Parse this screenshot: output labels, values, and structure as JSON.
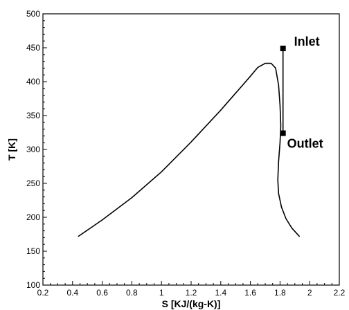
{
  "chart_data": {
    "type": "line",
    "title": "",
    "xlabel": "S [KJ/(kg-K)]",
    "ylabel": "T [K]",
    "xlim": [
      0.2,
      2.2
    ],
    "ylim": [
      100,
      500
    ],
    "xticks": [
      0.2,
      0.4,
      0.6,
      0.8,
      1.0,
      1.2,
      1.4,
      1.6,
      1.8,
      2.0,
      2.2
    ],
    "xtick_labels": [
      "0.2",
      "0.4",
      "0.6",
      "0.8",
      "1",
      "1.2",
      "1.4",
      "1.6",
      "1.8",
      "2",
      "2.2"
    ],
    "yticks": [
      100,
      150,
      200,
      250,
      300,
      350,
      400,
      450,
      500
    ],
    "ytick_labels": [
      "100",
      "150",
      "200",
      "250",
      "300",
      "350",
      "400",
      "450",
      "500"
    ],
    "grid": false,
    "series": [
      {
        "kind": "curve",
        "x": [
          0.44,
          0.6,
          0.8,
          1.0,
          1.2,
          1.4,
          1.5,
          1.6,
          1.65,
          1.7,
          1.74,
          1.77,
          1.79,
          1.8,
          1.805,
          1.8,
          1.79,
          1.785,
          1.79,
          1.81,
          1.84,
          1.88,
          1.93
        ],
        "y": [
          172,
          196,
          229,
          267,
          311,
          358,
          383,
          408,
          421,
          427,
          427,
          420,
          395,
          365,
          335,
          310,
          282,
          255,
          235,
          215,
          198,
          184,
          172
        ]
      },
      {
        "kind": "process-line",
        "x": [
          1.82,
          1.82
        ],
        "y": [
          449,
          324
        ]
      }
    ],
    "annotations": [
      {
        "text": "Inlet",
        "x": 1.82,
        "y": 449
      },
      {
        "text": "Outlet",
        "x": 1.82,
        "y": 324
      }
    ]
  }
}
